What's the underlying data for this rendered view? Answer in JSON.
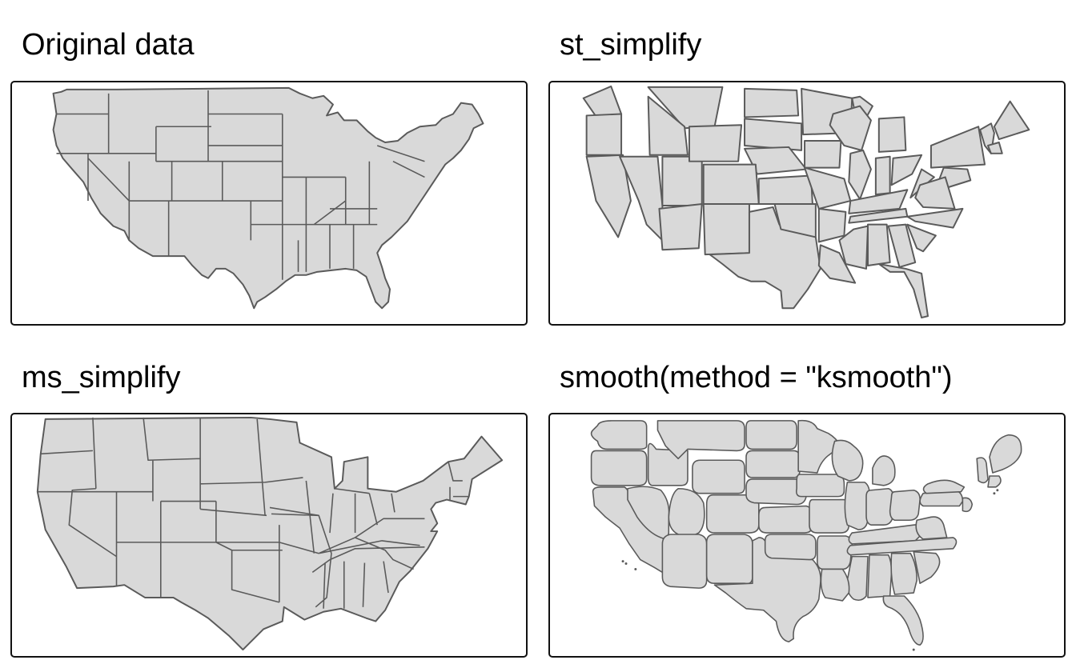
{
  "panels": [
    {
      "title": "Original data"
    },
    {
      "title": "st_simplify"
    },
    {
      "title": "ms_simplify"
    },
    {
      "title": "smooth(method = \"ksmooth\")"
    }
  ],
  "colors": {
    "state_fill": "#d9d9d9",
    "state_stroke": "#5a5a5a",
    "panel_border": "#111111",
    "background": "#ffffff"
  }
}
